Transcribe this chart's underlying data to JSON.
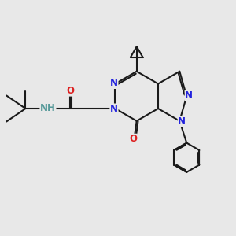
{
  "bg_color": "#e8e8e8",
  "bond_color": "#1a1a1a",
  "n_color": "#2222dd",
  "o_color": "#dd2222",
  "nh_color": "#559999",
  "lw": 1.5,
  "fs": 8.5,
  "xlim": [
    0,
    10
  ],
  "ylim": [
    0,
    10
  ]
}
